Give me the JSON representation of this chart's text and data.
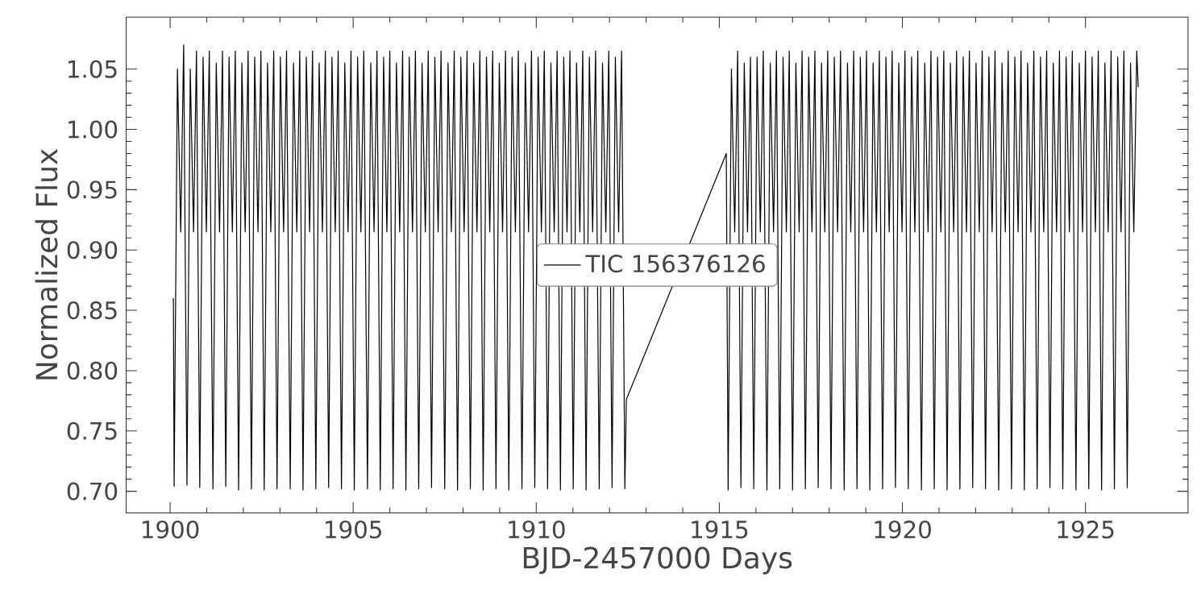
{
  "chart_data": {
    "type": "line",
    "xlabel": "BJD-2457000 Days",
    "ylabel": "Normalized Flux",
    "xlim": [
      1898.8,
      1927.8
    ],
    "ylim": [
      0.682,
      1.093
    ],
    "xticks": [
      1900,
      1905,
      1910,
      1915,
      1920,
      1925
    ],
    "yticks": [
      {
        "value": 0.7,
        "label": "0.70"
      },
      {
        "value": 0.75,
        "label": "0.75"
      },
      {
        "value": 0.8,
        "label": "0.80"
      },
      {
        "value": 0.85,
        "label": "0.85"
      },
      {
        "value": 0.9,
        "label": "0.90"
      },
      {
        "value": 0.95,
        "label": "0.95"
      },
      {
        "value": 1.0,
        "label": "1.00"
      },
      {
        "value": 1.05,
        "label": "1.05"
      }
    ],
    "grid": false,
    "legend": "center",
    "line_style": "solid",
    "series": [
      {
        "name": "TIC 156376126",
        "color": "#000000",
        "x": [
          1900.09,
          1900.11,
          1900.2,
          1900.29,
          1900.37,
          1900.46,
          1900.55,
          1900.64,
          1900.72,
          1900.81,
          1900.9,
          1900.99,
          1901.07,
          1901.17,
          1901.26,
          1901.35,
          1901.43,
          1901.52,
          1901.61,
          1901.7,
          1901.78,
          1901.87,
          1901.96,
          1902.05,
          1902.13,
          1902.22,
          1902.31,
          1902.4,
          1902.48,
          1902.57,
          1902.66,
          1902.75,
          1902.83,
          1902.92,
          1903.01,
          1903.1,
          1903.18,
          1903.28,
          1903.37,
          1903.46,
          1903.54,
          1903.63,
          1903.72,
          1903.81,
          1903.89,
          1903.98,
          1904.07,
          1904.16,
          1904.24,
          1904.33,
          1904.42,
          1904.51,
          1904.59,
          1904.68,
          1904.77,
          1904.86,
          1904.94,
          1905.03,
          1905.12,
          1905.21,
          1905.29,
          1905.39,
          1905.48,
          1905.57,
          1905.65,
          1905.74,
          1905.83,
          1905.92,
          1906.0,
          1906.09,
          1906.18,
          1906.27,
          1906.35,
          1906.44,
          1906.53,
          1906.62,
          1906.7,
          1906.79,
          1906.88,
          1906.97,
          1907.05,
          1907.14,
          1907.23,
          1907.32,
          1907.4,
          1907.5,
          1907.59,
          1907.68,
          1907.76,
          1907.85,
          1907.94,
          1908.03,
          1908.11,
          1908.2,
          1908.29,
          1908.38,
          1908.46,
          1908.55,
          1908.64,
          1908.73,
          1908.81,
          1908.9,
          1908.99,
          1909.08,
          1909.16,
          1909.25,
          1909.34,
          1909.43,
          1909.51,
          1909.61,
          1909.7,
          1909.79,
          1909.87,
          1909.96,
          1910.05,
          1910.14,
          1910.22,
          1910.31,
          1910.4,
          1910.49,
          1910.57,
          1910.66,
          1910.75,
          1910.84,
          1910.92,
          1911.01,
          1911.1,
          1911.19,
          1911.27,
          1911.36,
          1911.45,
          1911.54,
          1911.62,
          1911.72,
          1911.81,
          1911.9,
          1911.98,
          1912.07,
          1912.16,
          1912.25,
          1912.33,
          1912.42,
          1912.46,
          1915.19,
          1915.24,
          1915.33,
          1915.42,
          1915.5,
          1915.59,
          1915.68,
          1915.77,
          1915.85,
          1915.94,
          1916.03,
          1916.12,
          1916.2,
          1916.3,
          1916.39,
          1916.48,
          1916.56,
          1916.65,
          1916.74,
          1916.83,
          1916.91,
          1917.0,
          1917.09,
          1917.18,
          1917.26,
          1917.35,
          1917.44,
          1917.53,
          1917.61,
          1917.7,
          1917.79,
          1917.88,
          1917.96,
          1918.05,
          1918.14,
          1918.23,
          1918.31,
          1918.41,
          1918.5,
          1918.59,
          1918.67,
          1918.76,
          1918.85,
          1918.94,
          1919.02,
          1919.11,
          1919.2,
          1919.29,
          1919.37,
          1919.46,
          1919.55,
          1919.64,
          1919.72,
          1919.81,
          1919.9,
          1919.99,
          1920.07,
          1920.16,
          1920.25,
          1920.34,
          1920.42,
          1920.52,
          1920.61,
          1920.7,
          1920.78,
          1920.87,
          1920.96,
          1921.05,
          1921.13,
          1921.22,
          1921.31,
          1921.4,
          1921.48,
          1921.57,
          1921.66,
          1921.75,
          1921.83,
          1921.92,
          1922.01,
          1922.1,
          1922.18,
          1922.27,
          1922.36,
          1922.45,
          1922.53,
          1922.63,
          1922.72,
          1922.81,
          1922.89,
          1922.98,
          1923.07,
          1923.16,
          1923.24,
          1923.33,
          1923.42,
          1923.51,
          1923.59,
          1923.68,
          1923.77,
          1923.86,
          1923.94,
          1924.03,
          1924.12,
          1924.21,
          1924.29,
          1924.38,
          1924.47,
          1924.56,
          1924.64,
          1924.74,
          1924.83,
          1924.92,
          1925.0,
          1925.09,
          1925.18,
          1925.27,
          1925.35,
          1925.44,
          1925.53,
          1925.62,
          1925.7,
          1925.79,
          1925.88,
          1925.97,
          1926.05,
          1926.14,
          1926.23,
          1926.32,
          1926.4,
          1926.44
        ],
        "values": [
          0.86,
          0.704,
          1.05,
          0.915,
          1.07,
          0.705,
          1.05,
          0.915,
          1.065,
          0.703,
          1.06,
          0.915,
          1.065,
          0.702,
          1.055,
          0.915,
          1.065,
          0.704,
          1.06,
          0.915,
          1.065,
          0.701,
          1.055,
          0.915,
          1.065,
          0.702,
          1.06,
          0.915,
          1.065,
          0.701,
          1.055,
          0.915,
          1.065,
          0.702,
          1.06,
          0.915,
          1.065,
          0.702,
          1.055,
          0.915,
          1.065,
          0.701,
          1.06,
          0.915,
          1.065,
          0.702,
          1.055,
          0.915,
          1.065,
          0.703,
          1.06,
          0.915,
          1.065,
          0.702,
          1.055,
          0.915,
          1.065,
          0.701,
          1.06,
          0.915,
          1.065,
          0.702,
          1.055,
          0.915,
          1.065,
          0.701,
          1.06,
          0.915,
          1.065,
          0.702,
          1.055,
          0.915,
          1.065,
          0.701,
          1.06,
          0.915,
          1.065,
          0.702,
          1.055,
          0.915,
          1.065,
          0.703,
          1.06,
          0.915,
          1.065,
          0.702,
          1.055,
          0.915,
          1.065,
          0.701,
          1.06,
          0.915,
          1.065,
          0.702,
          1.055,
          0.915,
          1.065,
          0.701,
          1.06,
          0.915,
          1.065,
          0.702,
          1.055,
          0.915,
          1.065,
          0.701,
          1.06,
          0.915,
          1.065,
          0.702,
          1.055,
          0.915,
          1.065,
          0.703,
          1.06,
          0.915,
          1.065,
          0.702,
          1.055,
          0.915,
          1.065,
          0.701,
          1.06,
          0.915,
          1.065,
          0.702,
          1.055,
          0.915,
          1.065,
          0.701,
          1.06,
          0.915,
          1.065,
          0.702,
          1.055,
          0.915,
          1.065,
          0.703,
          1.06,
          0.915,
          1.065,
          0.702,
          0.776,
          0.98,
          0.701,
          1.05,
          0.915,
          1.065,
          0.703,
          1.055,
          0.915,
          1.06,
          0.702,
          1.06,
          0.915,
          1.065,
          0.701,
          1.055,
          0.915,
          1.065,
          0.702,
          1.06,
          0.915,
          1.065,
          0.701,
          1.055,
          0.915,
          1.065,
          0.702,
          1.06,
          0.915,
          1.065,
          0.703,
          1.055,
          0.915,
          1.065,
          0.702,
          1.06,
          0.915,
          1.065,
          0.701,
          1.055,
          0.915,
          1.065,
          0.702,
          1.06,
          0.915,
          1.065,
          0.701,
          1.055,
          0.915,
          1.065,
          0.702,
          1.06,
          0.915,
          1.065,
          0.703,
          1.055,
          0.915,
          1.065,
          0.702,
          1.06,
          0.915,
          1.065,
          0.701,
          1.055,
          0.915,
          1.065,
          0.702,
          1.06,
          0.915,
          1.065,
          0.701,
          1.055,
          0.915,
          1.065,
          0.702,
          1.06,
          0.915,
          1.065,
          0.703,
          1.055,
          0.915,
          1.065,
          0.702,
          1.06,
          0.915,
          1.065,
          0.701,
          1.055,
          0.915,
          1.065,
          0.702,
          1.06,
          0.915,
          1.065,
          0.701,
          1.055,
          0.915,
          1.065,
          0.702,
          1.06,
          0.915,
          1.065,
          0.703,
          1.055,
          0.915,
          1.065,
          0.702,
          1.06,
          0.915,
          1.065,
          0.701,
          1.055,
          0.915,
          1.065,
          0.702,
          1.06,
          0.915,
          1.065,
          0.701,
          1.055,
          0.915,
          1.065,
          0.702,
          1.06,
          0.915,
          1.065,
          0.703,
          1.055,
          0.915,
          1.065,
          1.035
        ]
      }
    ]
  }
}
